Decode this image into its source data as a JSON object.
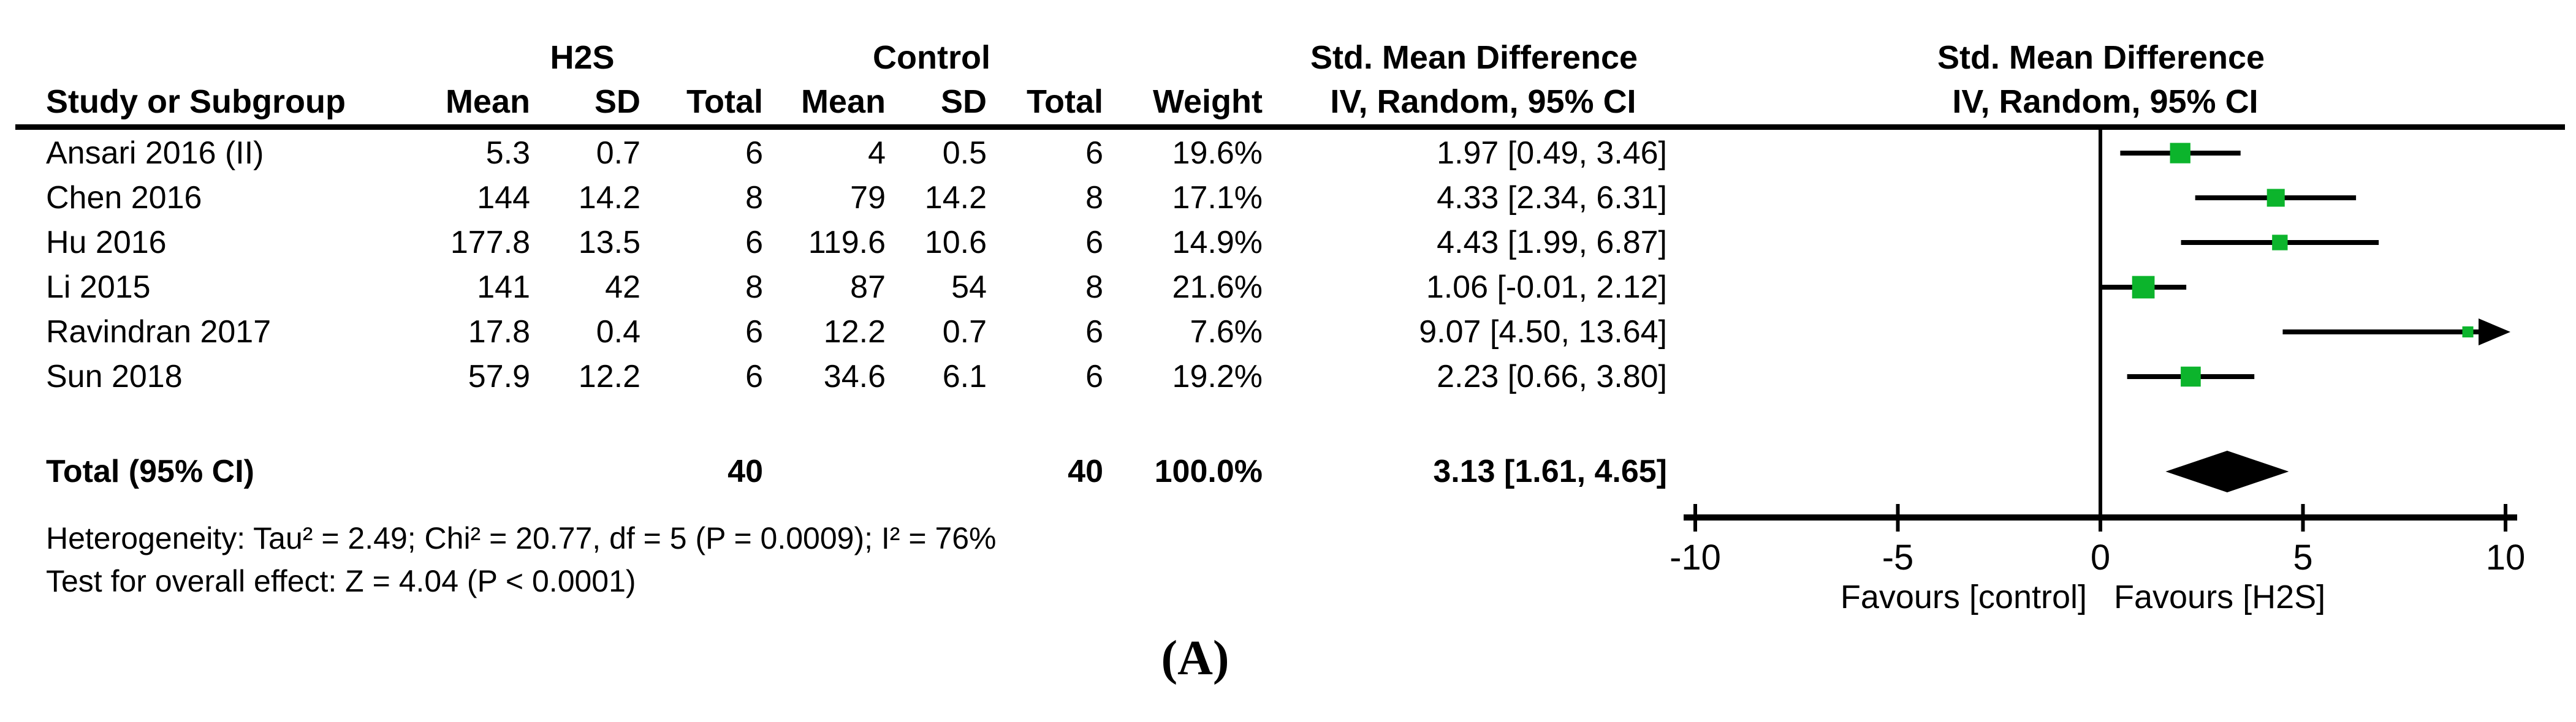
{
  "table": {
    "group_headers": {
      "h2s": "H2S",
      "control": "Control",
      "smd": "Std. Mean Difference",
      "method": "IV, Random, 95% CI"
    },
    "columns": {
      "study": "Study or Subgroup",
      "mean": "Mean",
      "sd": "SD",
      "total": "Total",
      "weight": "Weight",
      "method": "IV, Random, 95% CI"
    },
    "rows": [
      {
        "study": "Ansari 2016 (II)",
        "h2s_mean": "5.3",
        "h2s_sd": "0.7",
        "h2s_total": "6",
        "ctl_mean": "4",
        "ctl_sd": "0.5",
        "ctl_total": "6",
        "weight": "19.6%",
        "smd_ci": "1.97 [0.49, 3.46]"
      },
      {
        "study": "Chen 2016",
        "h2s_mean": "144",
        "h2s_sd": "14.2",
        "h2s_total": "8",
        "ctl_mean": "79",
        "ctl_sd": "14.2",
        "ctl_total": "8",
        "weight": "17.1%",
        "smd_ci": "4.33 [2.34, 6.31]"
      },
      {
        "study": "Hu 2016",
        "h2s_mean": "177.8",
        "h2s_sd": "13.5",
        "h2s_total": "6",
        "ctl_mean": "119.6",
        "ctl_sd": "10.6",
        "ctl_total": "6",
        "weight": "14.9%",
        "smd_ci": "4.43 [1.99, 6.87]"
      },
      {
        "study": "Li 2015",
        "h2s_mean": "141",
        "h2s_sd": "42",
        "h2s_total": "8",
        "ctl_mean": "87",
        "ctl_sd": "54",
        "ctl_total": "8",
        "weight": "21.6%",
        "smd_ci": "1.06 [-0.01, 2.12]"
      },
      {
        "study": "Ravindran 2017",
        "h2s_mean": "17.8",
        "h2s_sd": "0.4",
        "h2s_total": "6",
        "ctl_mean": "12.2",
        "ctl_sd": "0.7",
        "ctl_total": "6",
        "weight": "7.6%",
        "smd_ci": "9.07 [4.50, 13.64]"
      },
      {
        "study": "Sun 2018",
        "h2s_mean": "57.9",
        "h2s_sd": "12.2",
        "h2s_total": "6",
        "ctl_mean": "34.6",
        "ctl_sd": "6.1",
        "ctl_total": "6",
        "weight": "19.2%",
        "smd_ci": "2.23 [0.66, 3.80]"
      }
    ],
    "total_row": {
      "label": "Total (95% CI)",
      "h2s_total": "40",
      "ctl_total": "40",
      "weight": "100.0%",
      "smd_ci": "3.13 [1.61, 4.65]"
    }
  },
  "footer": {
    "heterogeneity": "Heterogeneity: Tau² = 2.49; Chi² = 20.77, df = 5 (P = 0.0009); I² = 76%",
    "overall_effect": "Test for overall effect: Z = 4.04 (P < 0.0001)"
  },
  "caption": "(A)",
  "colors": {
    "marker_green": "#0cb42c",
    "line_black": "#000000"
  },
  "chart_data": {
    "type": "forest",
    "title": "Std. Mean Difference",
    "subtitle": "IV, Random, 95% CI",
    "axis": {
      "min": -10,
      "max": 10,
      "ticks": [
        -10,
        -5,
        0,
        5,
        10
      ]
    },
    "tick_labels": [
      "-10",
      "-5",
      "0",
      "5",
      "10"
    ],
    "x_axis_labels": {
      "left": "Favours [control]",
      "right": "Favours [H2S]"
    },
    "studies": [
      {
        "name": "Ansari 2016 (II)",
        "est": 1.97,
        "lo": 0.49,
        "hi": 3.46,
        "weight": 19.6
      },
      {
        "name": "Chen 2016",
        "est": 4.33,
        "lo": 2.34,
        "hi": 6.31,
        "weight": 17.1
      },
      {
        "name": "Hu 2016",
        "est": 4.43,
        "lo": 1.99,
        "hi": 6.87,
        "weight": 14.9
      },
      {
        "name": "Li 2015",
        "est": 1.06,
        "lo": -0.01,
        "hi": 2.12,
        "weight": 21.6
      },
      {
        "name": "Ravindran 2017",
        "est": 9.07,
        "lo": 4.5,
        "hi": 13.64,
        "weight": 7.6
      },
      {
        "name": "Sun 2018",
        "est": 2.23,
        "lo": 0.66,
        "hi": 3.8,
        "weight": 19.2
      }
    ],
    "overall": {
      "name": "Total (95% CI)",
      "est": 3.13,
      "lo": 1.61,
      "hi": 4.65
    }
  }
}
